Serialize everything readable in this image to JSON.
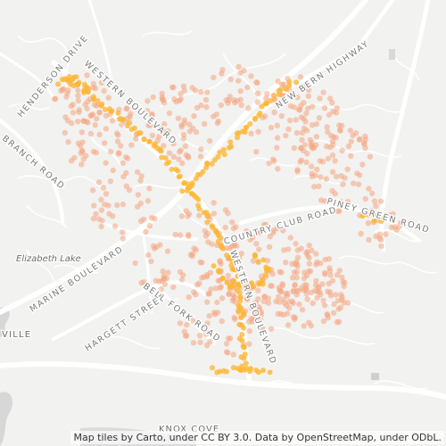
{
  "map": {
    "labels": {
      "henderson_drive": "HENDERSON DRIVE",
      "western_boulevard": "WESTERN BOULEVARD",
      "new_bern_highway": "NEW BERN HIGHWAY",
      "branch_road": "BRANCH ROAD",
      "country_club_road": "COUNTRY CLUB ROAD",
      "piney_green_road": "PINEY GREEN ROAD",
      "elizabeth_lake": "Elizabeth Lake",
      "marine_boulevard": "MARINE BOULEVARD",
      "hargett_street": "HARGETT STREET",
      "bell_fork_road": "BELL FORK ROAD",
      "ville": "VILLE",
      "knox_cove": "KNOX COVE",
      "western_boulevard_south": "WESTERN BOULEVARD"
    },
    "point_colors": {
      "sparse": "#f4a582",
      "dense": "#fdb733"
    },
    "attribution": "Map tiles by Carto, under CC BY 3.0. Data by OpenStreetMap, under ODbL."
  }
}
